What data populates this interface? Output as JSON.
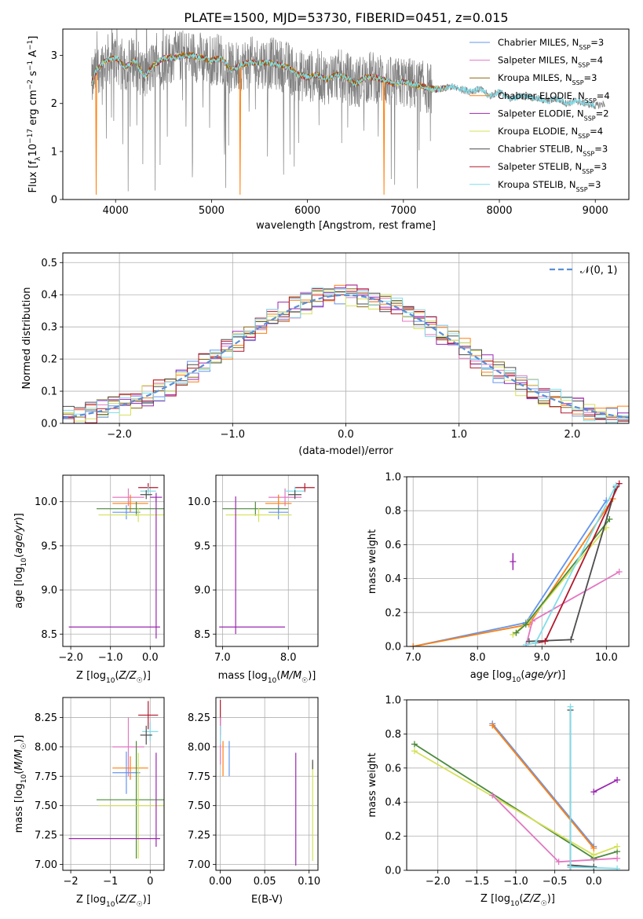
{
  "title": "PLATE=1500, MJD=53730, FIBERID=0451, z=0.015",
  "colors": {
    "chabrier_miles": "#6495ed",
    "salpeter_miles": "#e377c2",
    "kroupa_miles": "#8b6914",
    "chabrier_elodie": "#ff7f0e",
    "salpeter_elodie": "#9b27b0",
    "kroupa_elodie": "#d4e157",
    "chabrier_stelib": "#4d4d4d",
    "salpeter_stelib": "#b2182b",
    "kroupa_stelib": "#80deea",
    "normal_curve": "#5b8fd6",
    "green_series": "#4d8a3c"
  },
  "legend_entries": [
    {
      "label": "Chabrier MILES, N",
      "sub": "SSP",
      "val": "=3",
      "color_key": "chabrier_miles"
    },
    {
      "label": "Salpeter MILES, N",
      "sub": "SSP",
      "val": "=4",
      "color_key": "salpeter_miles"
    },
    {
      "label": "Kroupa MILES, N",
      "sub": "SSP",
      "val": "=3",
      "color_key": "kroupa_miles"
    },
    {
      "label": "Chabrier ELODIE, N",
      "sub": "SSP",
      "val": "=4",
      "color_key": "chabrier_elodie"
    },
    {
      "label": "Salpeter ELODIE, N",
      "sub": "SSP",
      "val": "=2",
      "color_key": "salpeter_elodie"
    },
    {
      "label": "Kroupa ELODIE, N",
      "sub": "SSP",
      "val": "=4",
      "color_key": "kroupa_elodie"
    },
    {
      "label": "Chabrier STELIB, N",
      "sub": "SSP",
      "val": "=3",
      "color_key": "chabrier_stelib"
    },
    {
      "label": "Salpeter STELIB, N",
      "sub": "SSP",
      "val": "=3",
      "color_key": "salpeter_stelib"
    },
    {
      "label": "Kroupa STELIB, N",
      "sub": "SSP",
      "val": "=3",
      "color_key": "kroupa_stelib"
    }
  ],
  "chart_data": [
    {
      "id": "spectrum",
      "type": "line",
      "xlabel": "wavelength [Angstrom, rest frame]",
      "ylabel": "Flux [f_λ 10^-17 erg cm^-2 s^-1 A^-1]",
      "xlim": [
        3450,
        9350
      ],
      "ylim": [
        0,
        3.55
      ],
      "xticks": [
        4000,
        5000,
        6000,
        7000,
        8000,
        9000
      ],
      "yticks": [
        0,
        1,
        2,
        3
      ],
      "continuum": {
        "x": [
          3750,
          3800,
          3900,
          4000,
          4100,
          4200,
          4300,
          4400,
          4500,
          4600,
          4700,
          4800,
          4900,
          5000,
          5100,
          5200,
          5300,
          5400,
          5500,
          5600,
          5700,
          5800,
          5900,
          6000,
          6100,
          6200,
          6300,
          6400,
          6500,
          6600,
          6700,
          6800,
          6900,
          7000,
          7100,
          7200,
          7300,
          7400,
          7500,
          7600,
          7700,
          7800,
          7900,
          8000,
          8100,
          8200,
          8300,
          8400,
          8500,
          8600,
          8700,
          8800,
          8900,
          9000,
          9100
        ],
        "y": [
          2.4,
          2.7,
          2.9,
          2.95,
          2.75,
          2.9,
          2.55,
          2.8,
          2.95,
          2.95,
          3.0,
          3.0,
          2.95,
          2.9,
          2.95,
          2.7,
          2.8,
          2.85,
          2.85,
          2.85,
          2.8,
          2.75,
          2.6,
          2.55,
          2.6,
          2.5,
          2.6,
          2.55,
          2.4,
          2.55,
          2.55,
          2.5,
          2.4,
          2.45,
          2.4,
          2.35,
          2.3,
          2.3,
          2.35,
          2.3,
          2.25,
          2.3,
          2.15,
          2.25,
          2.1,
          2.15,
          2.15,
          2.1,
          2.05,
          2.1,
          2.0,
          2.05,
          2.0,
          1.95,
          2.0
        ]
      },
      "model_end": 7450
    },
    {
      "id": "residuals",
      "type": "step",
      "xlabel": "(data-model)/error",
      "ylabel": "Normed distribution",
      "xlim": [
        -2.5,
        2.5
      ],
      "ylim": [
        0,
        0.53
      ],
      "xticks": [
        -2,
        -1,
        0,
        1,
        2
      ],
      "yticks": [
        0.0,
        0.1,
        0.2,
        0.3,
        0.4,
        0.5
      ],
      "bin_width": 0.1,
      "normal_legend": "𝒩(0, 1)"
    },
    {
      "id": "age_vs_Z",
      "type": "errorbar",
      "xlabel": "Z [log10(Z/Z☉)]",
      "ylabel": "age  [log10(age/yr)]",
      "xlim": [
        -2.2,
        0.35
      ],
      "ylim": [
        8.36,
        10.3
      ],
      "xticks": [
        -2,
        -1,
        0
      ],
      "yticks": [
        8.5,
        9.0,
        9.5,
        10.0
      ],
      "points": [
        {
          "color_key": "salpeter_miles",
          "x": -0.55,
          "xerr": 0.4,
          "y": 10.05,
          "yerr": 0.1
        },
        {
          "color_key": "chabrier_elodie",
          "x": -0.5,
          "xerr": 0.45,
          "y": 9.98,
          "yerr": 0.1
        },
        {
          "color_key": "chabrier_miles",
          "x": -0.6,
          "xerr": 0.35,
          "y": 9.88,
          "yerr": 0.08
        },
        {
          "color_key": "green_series",
          "x": -0.35,
          "xerr": 1.0,
          "y": 9.92,
          "yerr": 0.08
        },
        {
          "color_key": "kroupa_elodie",
          "x": -0.3,
          "xerr": 1.0,
          "y": 9.85,
          "yerr": 0.08
        },
        {
          "color_key": "salpeter_stelib",
          "x": -0.05,
          "xerr": 0.25,
          "y": 10.16,
          "yerr": 0.05
        },
        {
          "color_key": "kroupa_stelib",
          "x": -0.05,
          "xerr": 0.2,
          "y": 10.12,
          "yerr": 0.05
        },
        {
          "color_key": "chabrier_stelib",
          "x": -0.1,
          "xerr": 0.15,
          "y": 10.08,
          "yerr": 0.05
        },
        {
          "color_key": "salpeter_elodie",
          "x": 0.15,
          "xerr": 0.15,
          "y": 10.05,
          "yerr": 0.05
        },
        {
          "color_key": "salpeter_elodie",
          "x": -0.9,
          "xerr": 1.15,
          "y": 8.58,
          "yerr": 0.0
        },
        {
          "color_key": "salpeter_elodie",
          "x": 0.15,
          "xerr": 0.0,
          "y": 9.25,
          "yerr": 0.8
        }
      ]
    },
    {
      "id": "age_vs_mass",
      "type": "errorbar",
      "xlabel": "mass [log10(M/M☉)]",
      "ylabel": "",
      "xlim": [
        6.9,
        8.45
      ],
      "ylim": [
        8.36,
        10.3
      ],
      "xticks": [
        7,
        8
      ],
      "yticks": [
        8.5,
        9.0,
        9.5,
        10.0
      ],
      "points": [
        {
          "color_key": "salpeter_miles",
          "x": 7.95,
          "xerr": 0.25,
          "y": 10.05,
          "yerr": 0.1
        },
        {
          "color_key": "chabrier_elodie",
          "x": 7.85,
          "xerr": 0.2,
          "y": 9.98,
          "yerr": 0.1
        },
        {
          "color_key": "chabrier_miles",
          "x": 7.85,
          "xerr": 0.15,
          "y": 9.88,
          "yerr": 0.08
        },
        {
          "color_key": "green_series",
          "x": 7.5,
          "xerr": 0.5,
          "y": 9.92,
          "yerr": 0.08
        },
        {
          "color_key": "kroupa_elodie",
          "x": 7.55,
          "xerr": 0.5,
          "y": 9.85,
          "yerr": 0.08
        },
        {
          "color_key": "salpeter_stelib",
          "x": 8.25,
          "xerr": 0.15,
          "y": 10.16,
          "yerr": 0.05
        },
        {
          "color_key": "kroupa_stelib",
          "x": 8.1,
          "xerr": 0.15,
          "y": 10.12,
          "yerr": 0.05
        },
        {
          "color_key": "chabrier_stelib",
          "x": 8.1,
          "xerr": 0.1,
          "y": 10.08,
          "yerr": 0.05
        },
        {
          "color_key": "salpeter_elodie",
          "x": 7.2,
          "xerr": 0.0,
          "y": 9.28,
          "yerr": 0.78
        },
        {
          "color_key": "salpeter_elodie",
          "x": 7.45,
          "xerr": 0.5,
          "y": 8.58,
          "yerr": 0.0
        }
      ]
    },
    {
      "id": "mass_weight_vs_age",
      "type": "line",
      "xlabel": "age  [log10(age/yr)]",
      "ylabel": "mass weight",
      "xlim": [
        6.9,
        10.35
      ],
      "ylim": [
        0,
        1
      ],
      "xticks": [
        7,
        8,
        9,
        10
      ],
      "yticks": [
        0.0,
        0.2,
        0.4,
        0.6,
        0.8,
        1.0
      ],
      "series": [
        {
          "color_key": "chabrier_miles",
          "x": [
            7.0,
            8.75,
            10.0
          ],
          "y": [
            0.0,
            0.14,
            0.86
          ]
        },
        {
          "color_key": "chabrier_elodie",
          "x": [
            7.0,
            8.8,
            10.1
          ],
          "y": [
            0.0,
            0.13,
            0.87
          ]
        },
        {
          "color_key": "salpeter_miles",
          "x": [
            8.75,
            8.85,
            10.2
          ],
          "y": [
            0.0,
            0.15,
            0.44
          ]
        },
        {
          "color_key": "kroupa_elodie",
          "x": [
            8.55,
            8.8,
            10.0
          ],
          "y": [
            0.07,
            0.15,
            0.7
          ]
        },
        {
          "color_key": "green_series",
          "x": [
            8.6,
            8.75,
            10.05
          ],
          "y": [
            0.08,
            0.13,
            0.75
          ]
        },
        {
          "color_key": "chabrier_stelib",
          "x": [
            8.8,
            9.45,
            10.15
          ],
          "y": [
            0.03,
            0.04,
            0.94
          ]
        },
        {
          "color_key": "salpeter_stelib",
          "x": [
            8.9,
            9.05,
            10.2
          ],
          "y": [
            0.02,
            0.03,
            0.96
          ]
        },
        {
          "color_key": "kroupa_stelib",
          "x": [
            8.75,
            8.9,
            10.15
          ],
          "y": [
            0.01,
            0.02,
            0.95
          ]
        },
        {
          "color_key": "salpeter_elodie",
          "x": [
            8.55
          ],
          "y": [
            0.5
          ],
          "yerr": 0.05
        }
      ]
    },
    {
      "id": "mass_vs_Z",
      "type": "errorbar",
      "xlabel": "Z [log10(Z/Z☉)]",
      "ylabel": "mass [log10(M/M☉)]",
      "xlim": [
        -2.2,
        0.35
      ],
      "ylim": [
        6.95,
        8.42
      ],
      "xticks": [
        -2,
        -1,
        0
      ],
      "yticks": [
        7.0,
        7.25,
        7.5,
        7.75,
        8.0,
        8.25
      ],
      "points": [
        {
          "color_key": "salpeter_miles",
          "x": -0.55,
          "xerr": 0.4,
          "y": 8.0,
          "yerr": 0.25
        },
        {
          "color_key": "chabrier_elodie",
          "x": -0.5,
          "xerr": 0.45,
          "y": 7.82,
          "yerr": 0.1
        },
        {
          "color_key": "chabrier_miles",
          "x": -0.6,
          "xerr": 0.35,
          "y": 7.78,
          "yerr": 0.18
        },
        {
          "color_key": "green_series",
          "x": -0.35,
          "xerr": 1.0,
          "y": 7.55,
          "yerr": 0.5
        },
        {
          "color_key": "kroupa_elodie",
          "x": -0.3,
          "xerr": 1.0,
          "y": 7.5,
          "yerr": 0.45
        },
        {
          "color_key": "salpeter_stelib",
          "x": -0.05,
          "xerr": 0.25,
          "y": 8.27,
          "yerr": 0.12
        },
        {
          "color_key": "kroupa_stelib",
          "x": 0.0,
          "xerr": 0.2,
          "y": 8.13,
          "yerr": 0.08
        },
        {
          "color_key": "chabrier_stelib",
          "x": -0.1,
          "xerr": 0.15,
          "y": 8.1,
          "yerr": 0.08
        },
        {
          "color_key": "salpeter_elodie",
          "x": 0.15,
          "xerr": 0.0,
          "y": 7.55,
          "yerr": 0.4
        },
        {
          "color_key": "salpeter_elodie",
          "x": -0.9,
          "xerr": 1.15,
          "y": 7.22,
          "yerr": 0.0
        }
      ]
    },
    {
      "id": "mass_vs_EBV",
      "type": "errorbar",
      "xlabel": "E(B-V)",
      "ylabel": "",
      "xlim": [
        -0.005,
        0.11
      ],
      "ylim": [
        6.95,
        8.42
      ],
      "xticks": [
        0.0,
        0.05,
        0.1
      ],
      "yticks": [
        7.0,
        7.25,
        7.5,
        7.75,
        8.0,
        8.25
      ],
      "points": [
        {
          "color_key": "salpeter_stelib",
          "x": 0.0,
          "xerr": 0.0,
          "y": 8.25,
          "yerr": 0.15
        },
        {
          "color_key": "salpeter_miles",
          "x": 0.0,
          "xerr": 0.0,
          "y": 8.05,
          "yerr": 0.2
        },
        {
          "color_key": "kroupa_stelib",
          "x": 0.0,
          "xerr": 0.0,
          "y": 8.1,
          "yerr": 0.08
        },
        {
          "color_key": "chabrier_elodie",
          "x": 0.003,
          "xerr": 0.0,
          "y": 7.9,
          "yerr": 0.15
        },
        {
          "color_key": "chabrier_miles",
          "x": 0.01,
          "xerr": 0.0,
          "y": 7.9,
          "yerr": 0.15
        },
        {
          "color_key": "salpeter_elodie",
          "x": 0.085,
          "xerr": 0.0,
          "y": 7.47,
          "yerr": 0.48
        },
        {
          "color_key": "kroupa_elodie",
          "x": 0.104,
          "xerr": 0.0,
          "y": 7.45,
          "yerr": 0.42
        },
        {
          "color_key": "chabrier_stelib",
          "x": 0.104,
          "xerr": 0.0,
          "y": 7.85,
          "yerr": 0.04
        }
      ]
    },
    {
      "id": "mass_weight_vs_Z",
      "type": "line",
      "xlabel": "Z [log10(Z/Z☉)]",
      "ylabel": "mass weight",
      "xlim": [
        -2.4,
        0.45
      ],
      "ylim": [
        0,
        1
      ],
      "xticks": [
        -2.0,
        -1.5,
        -1.0,
        -0.5,
        0.0
      ],
      "yticks": [
        0.0,
        0.2,
        0.4,
        0.6,
        0.8,
        1.0
      ],
      "series": [
        {
          "color_key": "chabrier_miles",
          "x": [
            -1.3,
            0.0
          ],
          "y": [
            0.86,
            0.14
          ]
        },
        {
          "color_key": "chabrier_elodie",
          "x": [
            -1.3,
            0.0
          ],
          "y": [
            0.85,
            0.13
          ]
        },
        {
          "color_key": "green_series",
          "x": [
            -2.3,
            0.0,
            0.3
          ],
          "y": [
            0.74,
            0.07,
            0.11
          ]
        },
        {
          "color_key": "kroupa_elodie",
          "x": [
            -2.3,
            0.0,
            0.3
          ],
          "y": [
            0.7,
            0.09,
            0.14
          ]
        },
        {
          "color_key": "salpeter_miles",
          "x": [
            -1.3,
            -0.45,
            0.3
          ],
          "y": [
            0.44,
            0.05,
            0.07
          ]
        },
        {
          "color_key": "chabrier_stelib",
          "x": [
            -0.3,
            -0.3,
            0.0
          ],
          "y": [
            0.94,
            0.03,
            0.02
          ]
        },
        {
          "color_key": "salpeter_stelib",
          "x": [
            -0.3,
            -0.3
          ],
          "y": [
            0.02,
            0.02
          ]
        },
        {
          "color_key": "kroupa_stelib",
          "x": [
            -0.3,
            -0.3,
            0.3
          ],
          "y": [
            0.96,
            0.02,
            0.01
          ]
        },
        {
          "color_key": "salpeter_elodie",
          "x": [
            0.0,
            0.3
          ],
          "y": [
            0.46,
            0.53
          ]
        }
      ]
    }
  ]
}
